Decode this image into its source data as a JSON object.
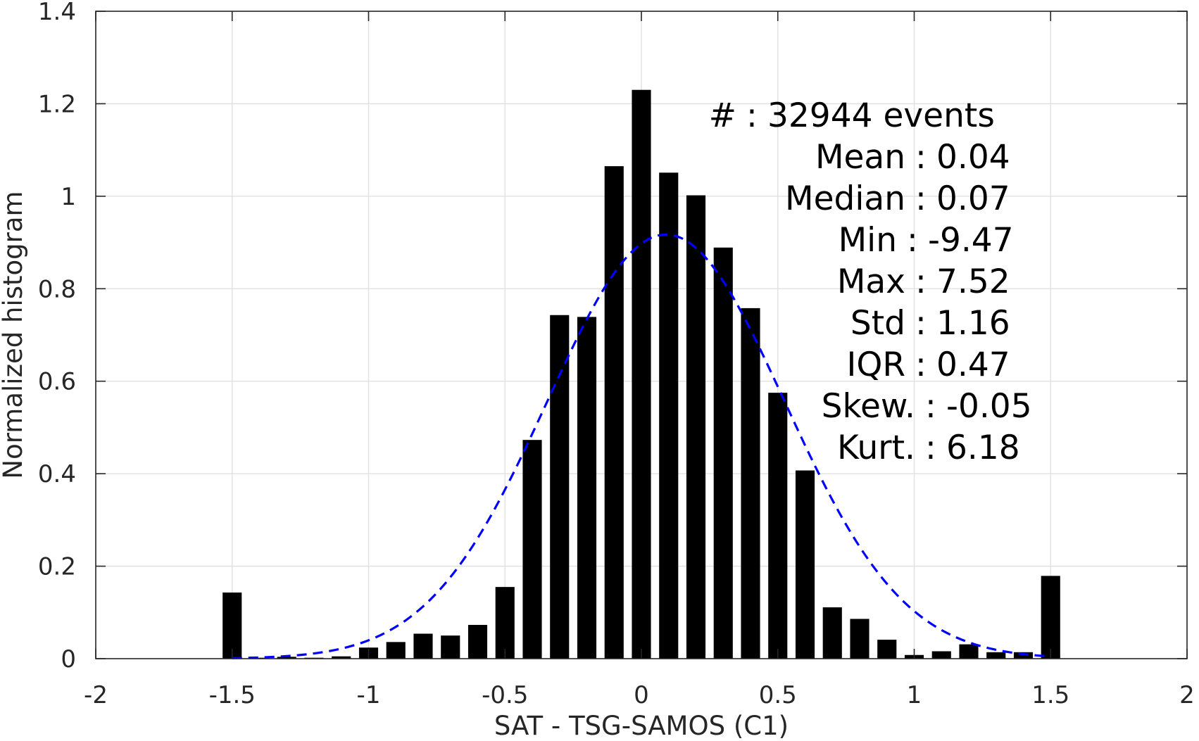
{
  "chart_data": {
    "type": "bar",
    "xlabel": "SAT - TSG-SAMOS (C1)",
    "ylabel": "Normalized histogram",
    "xlim": [
      -2,
      2
    ],
    "ylim": [
      0,
      1.4
    ],
    "xticks": [
      -2,
      -1.5,
      -1,
      -0.5,
      0,
      0.5,
      1,
      1.5,
      2
    ],
    "xtick_labels": [
      "-2",
      "-1.5",
      "-1",
      "-0.5",
      "0",
      "0.5",
      "1",
      "1.5",
      "2"
    ],
    "yticks": [
      0,
      0.2,
      0.4,
      0.6,
      0.8,
      1,
      1.2,
      1.4
    ],
    "ytick_labels": [
      "0",
      "0.2",
      "0.4",
      "0.6",
      "0.8",
      "1",
      "1.2",
      "1.4"
    ],
    "grid": true,
    "bar_color": "#000000",
    "bin_width": 0.1,
    "bar_width_data": 0.07,
    "bins": [
      -1.5,
      -1.4,
      -1.3,
      -1.2,
      -1.1,
      -1.0,
      -0.9,
      -0.8,
      -0.7,
      -0.6,
      -0.5,
      -0.4,
      -0.3,
      -0.2,
      -0.1,
      0.0,
      0.1,
      0.2,
      0.3,
      0.4,
      0.5,
      0.6,
      0.7,
      0.8,
      0.9,
      1.0,
      1.1,
      1.2,
      1.3,
      1.4,
      1.5
    ],
    "values": [
      0.143,
      0.002,
      0.004,
      0.002,
      0.005,
      0.024,
      0.036,
      0.054,
      0.05,
      0.073,
      0.155,
      0.473,
      0.743,
      0.739,
      1.065,
      1.23,
      1.051,
      1.002,
      0.889,
      0.758,
      0.575,
      0.407,
      0.111,
      0.086,
      0.041,
      0.008,
      0.016,
      0.031,
      0.014,
      0.014,
      0.179
    ],
    "fit_curve": {
      "style": "dashed",
      "color": "#0000ff",
      "mean": 0.09,
      "std": 0.435,
      "x_range": [
        -1.5,
        1.5
      ]
    },
    "stats": [
      {
        "label": "#",
        "sep": ":",
        "value": "32944 events"
      },
      {
        "label": "Mean",
        "sep": ":",
        "value": "0.04"
      },
      {
        "label": "Median",
        "sep": ":",
        "value": "0.07"
      },
      {
        "label": "Min",
        "sep": ":",
        "value": "-9.47"
      },
      {
        "label": "Max",
        "sep": ":",
        "value": "7.52"
      },
      {
        "label": "Std",
        "sep": ":",
        "value": "1.16"
      },
      {
        "label": "IQR",
        "sep": ":",
        "value": "0.47"
      },
      {
        "label": "Skew.",
        "sep": ":",
        "value": "-0.05"
      },
      {
        "label": "Kurt.",
        "sep": ":",
        "value": "6.18"
      }
    ]
  }
}
